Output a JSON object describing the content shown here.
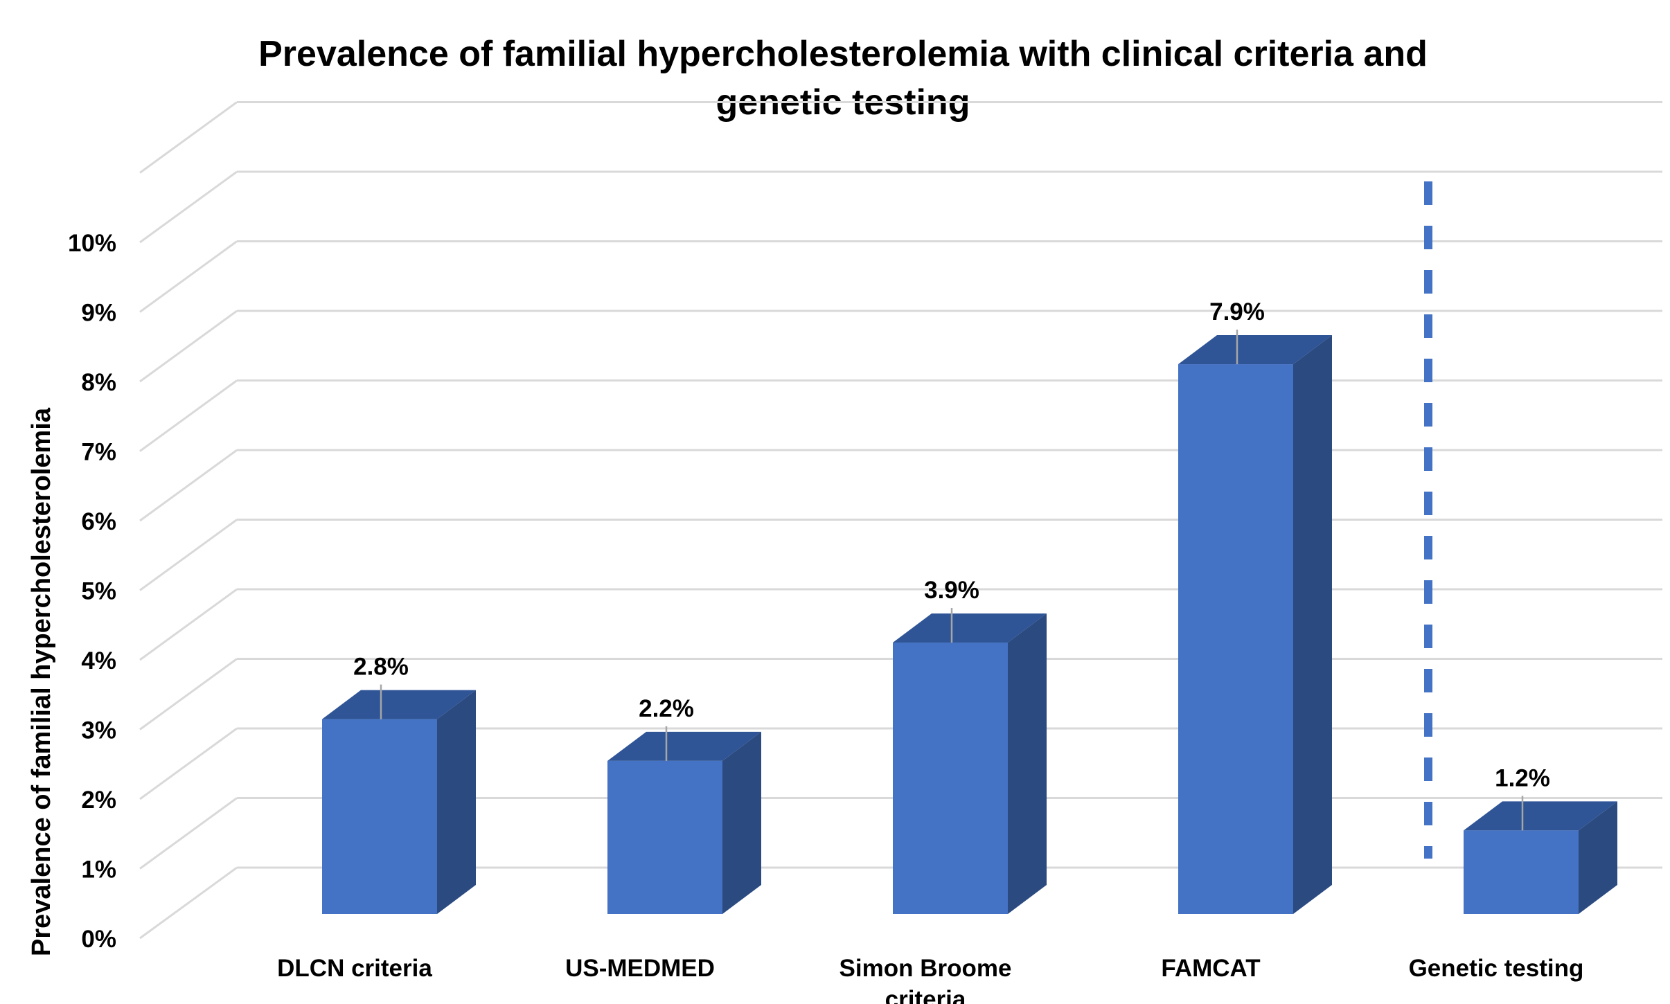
{
  "chart_data": {
    "type": "bar",
    "title_lines": [
      "Prevalence of familial hypercholesterolemia with clinical criteria and",
      "genetic testing"
    ],
    "xlabel": "",
    "ylabel": "Prevalence of familial hypercholesterolemia",
    "categories": [
      {
        "lines": [
          "DLCN criteria"
        ]
      },
      {
        "lines": [
          "US-MEDMED"
        ]
      },
      {
        "lines": [
          "Simon Broome",
          "criteria"
        ]
      },
      {
        "lines": [
          "FAMCAT"
        ]
      },
      {
        "lines": [
          "Genetic testing"
        ]
      }
    ],
    "values": [
      2.8,
      2.2,
      3.9,
      7.9,
      1.2
    ],
    "data_labels": [
      "2.8%",
      "2.2%",
      "3.9%",
      "7.9%",
      "1.2%"
    ],
    "y_ticks": [
      "0%",
      "1%",
      "2%",
      "3%",
      "4%",
      "5%",
      "6%",
      "7%",
      "8%",
      "9%",
      "10%"
    ],
    "ylim": [
      0,
      11
    ],
    "grid": true,
    "legend": "none",
    "style": "3d-column",
    "divider": "dashed vertical line between FAMCAT and Genetic testing",
    "colors": {
      "bar_front": "#4472C4",
      "bar_top": "#2F5597",
      "bar_side": "#2B4A80",
      "divider": "#4472C4",
      "grid": "#D9D9D9"
    }
  }
}
